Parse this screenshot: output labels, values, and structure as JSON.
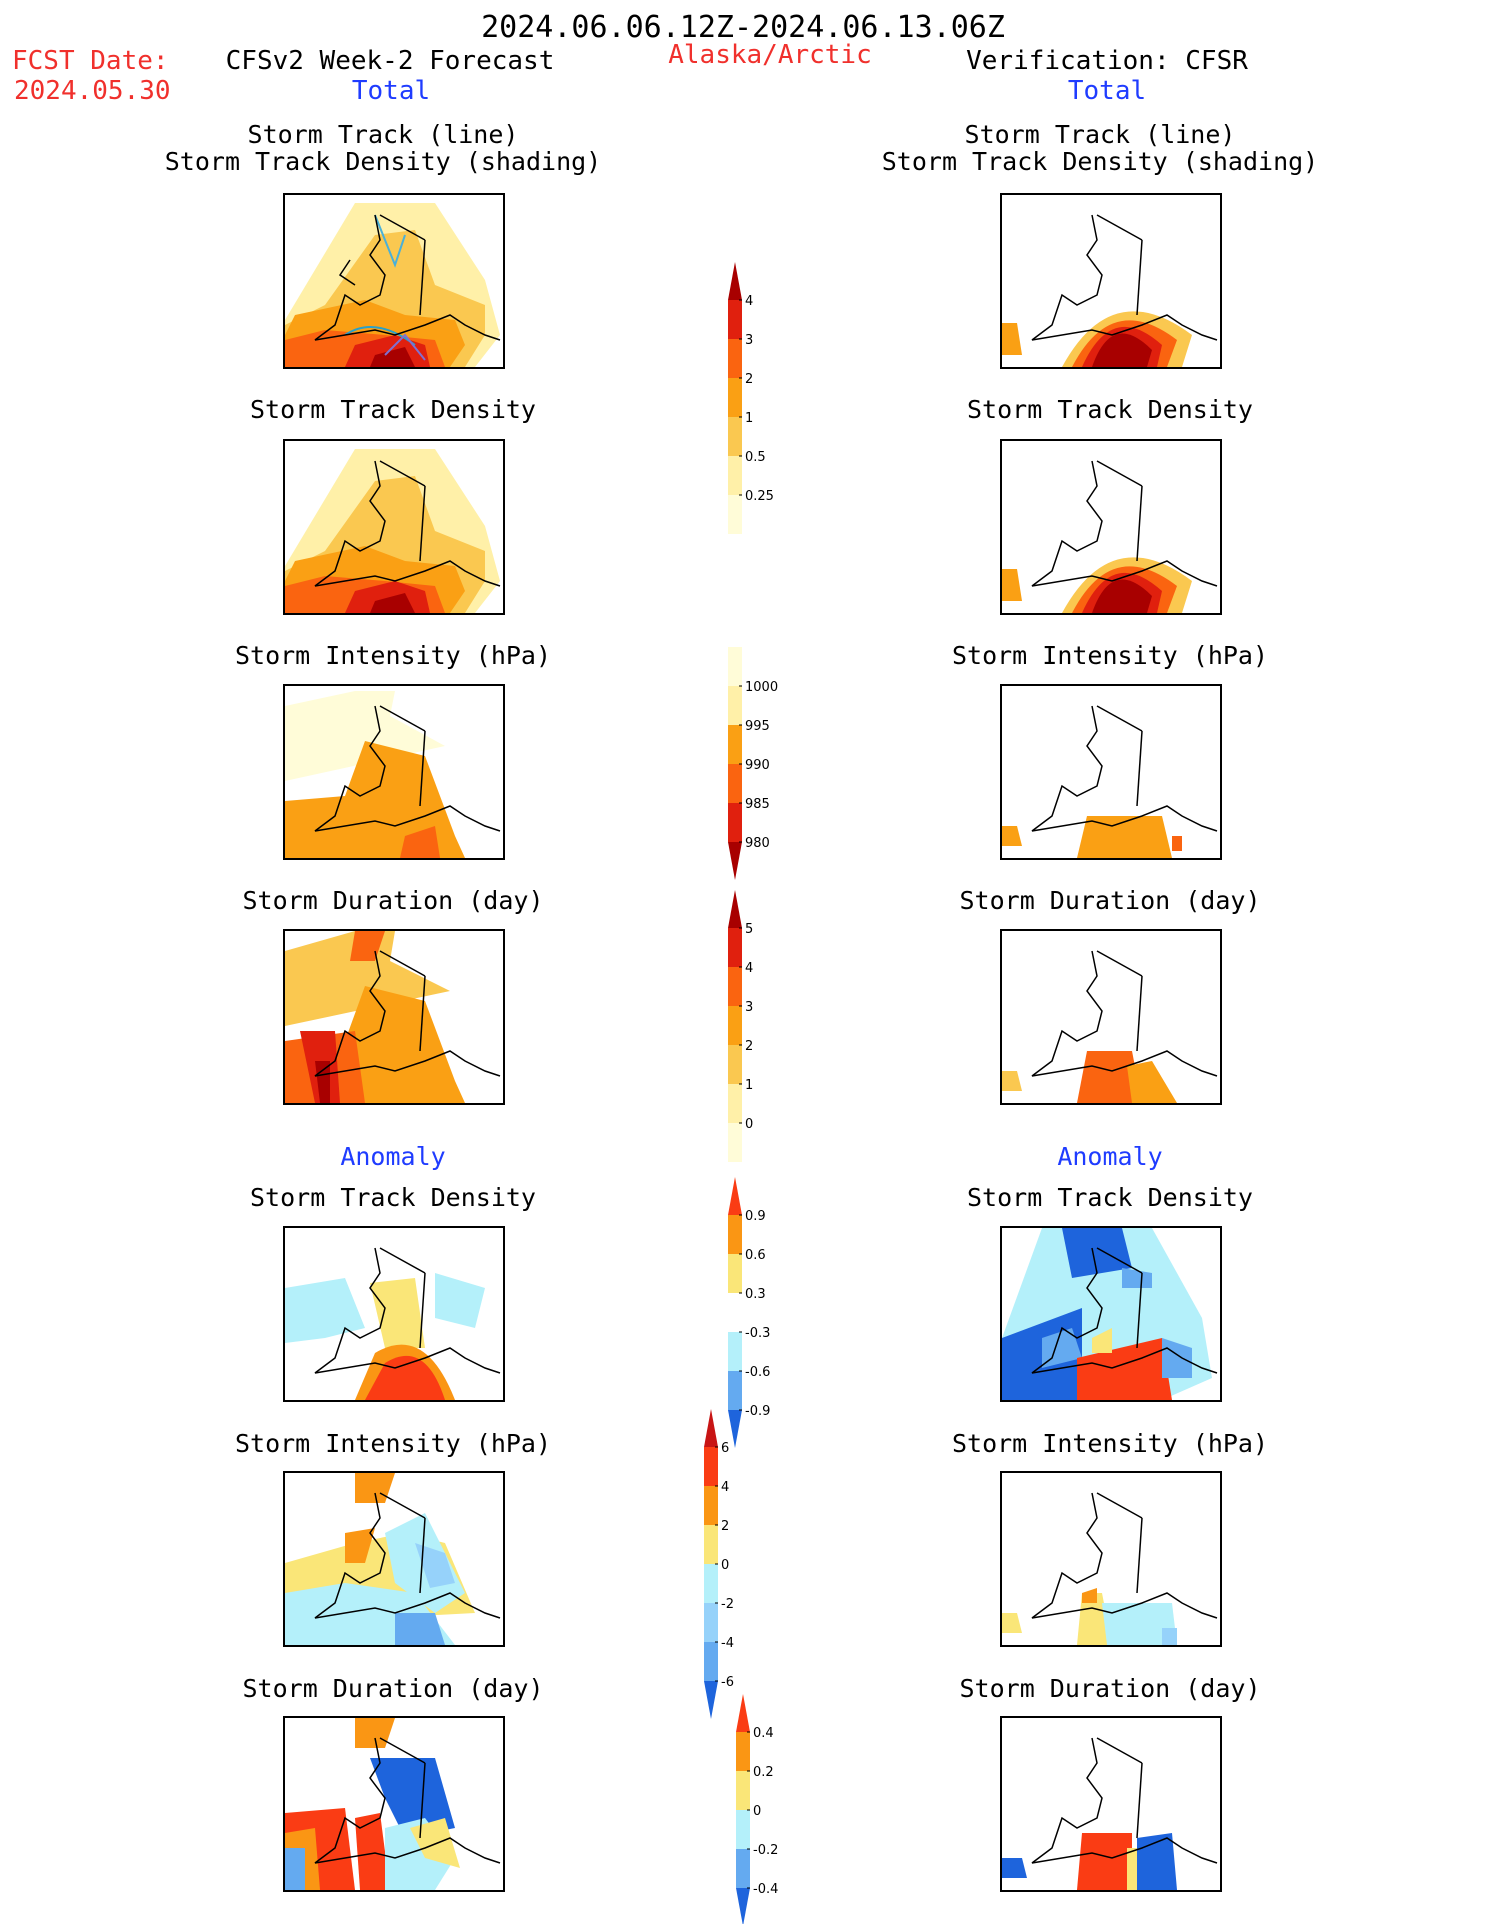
{
  "header": {
    "period": "2024.06.06.12Z-2024.06.13.06Z",
    "fcst_date_label": "FCST Date:",
    "fcst_date": "2024.05.30",
    "model": "CFSv2 Week-2 Forecast",
    "region": "Alaska/Arctic",
    "verification": "Verification: CFSR"
  },
  "sections": {
    "total": "Total",
    "anomaly": "Anomaly"
  },
  "titles": {
    "track_line": "Storm Track (line)",
    "track_density_shading": "Storm Track Density (shading)",
    "track_density": "Storm Track Density",
    "intensity": "Storm Intensity (hPa)",
    "duration": "Storm Duration (day)"
  },
  "colorbars": {
    "density": {
      "labels": [
        "4",
        "3",
        "2",
        "1",
        "0.5",
        "0.25"
      ],
      "colors": [
        "#a80000",
        "#e0200e",
        "#fa6410",
        "#faa014",
        "#fac850",
        "#fff0a8",
        "#fffcd8"
      ]
    },
    "intensity": {
      "labels": [
        "1000",
        "995",
        "990",
        "985",
        "980"
      ],
      "colors": [
        "#fffcd8",
        "#fff0a8",
        "#faa014",
        "#fa6410",
        "#e0200e",
        "#a80000"
      ]
    },
    "duration": {
      "labels": [
        "5",
        "4",
        "3",
        "2",
        "1",
        "0"
      ],
      "colors": [
        "#a80000",
        "#e0200e",
        "#fa6410",
        "#faa014",
        "#fac850",
        "#fff0a8",
        "#fffcd8"
      ]
    },
    "density_anom": {
      "labels": [
        "0.9",
        "0.6",
        "0.3",
        "-0.3",
        "-0.6",
        "-0.9"
      ],
      "colors": [
        "#fa3c14",
        "#fa9614",
        "#fae678",
        "#ffffff",
        "#b4f0fa",
        "#64aaf0",
        "#1e64dc"
      ]
    },
    "intensity_anom": {
      "labels": [
        "6",
        "4",
        "2",
        "0",
        "-2",
        "-4",
        "-6"
      ],
      "colors": [
        "#c81414",
        "#fa3c14",
        "#fa9614",
        "#fae678",
        "#b4f0fa",
        "#96d2fa",
        "#64aaf0",
        "#1e64dc"
      ]
    },
    "duration_anom": {
      "labels": [
        "0.4",
        "0.2",
        "0",
        "-0.2",
        "-0.4"
      ],
      "colors": [
        "#fa3c14",
        "#fa9614",
        "#fae678",
        "#b4f0fa",
        "#64aaf0",
        "#1e64dc"
      ]
    }
  }
}
